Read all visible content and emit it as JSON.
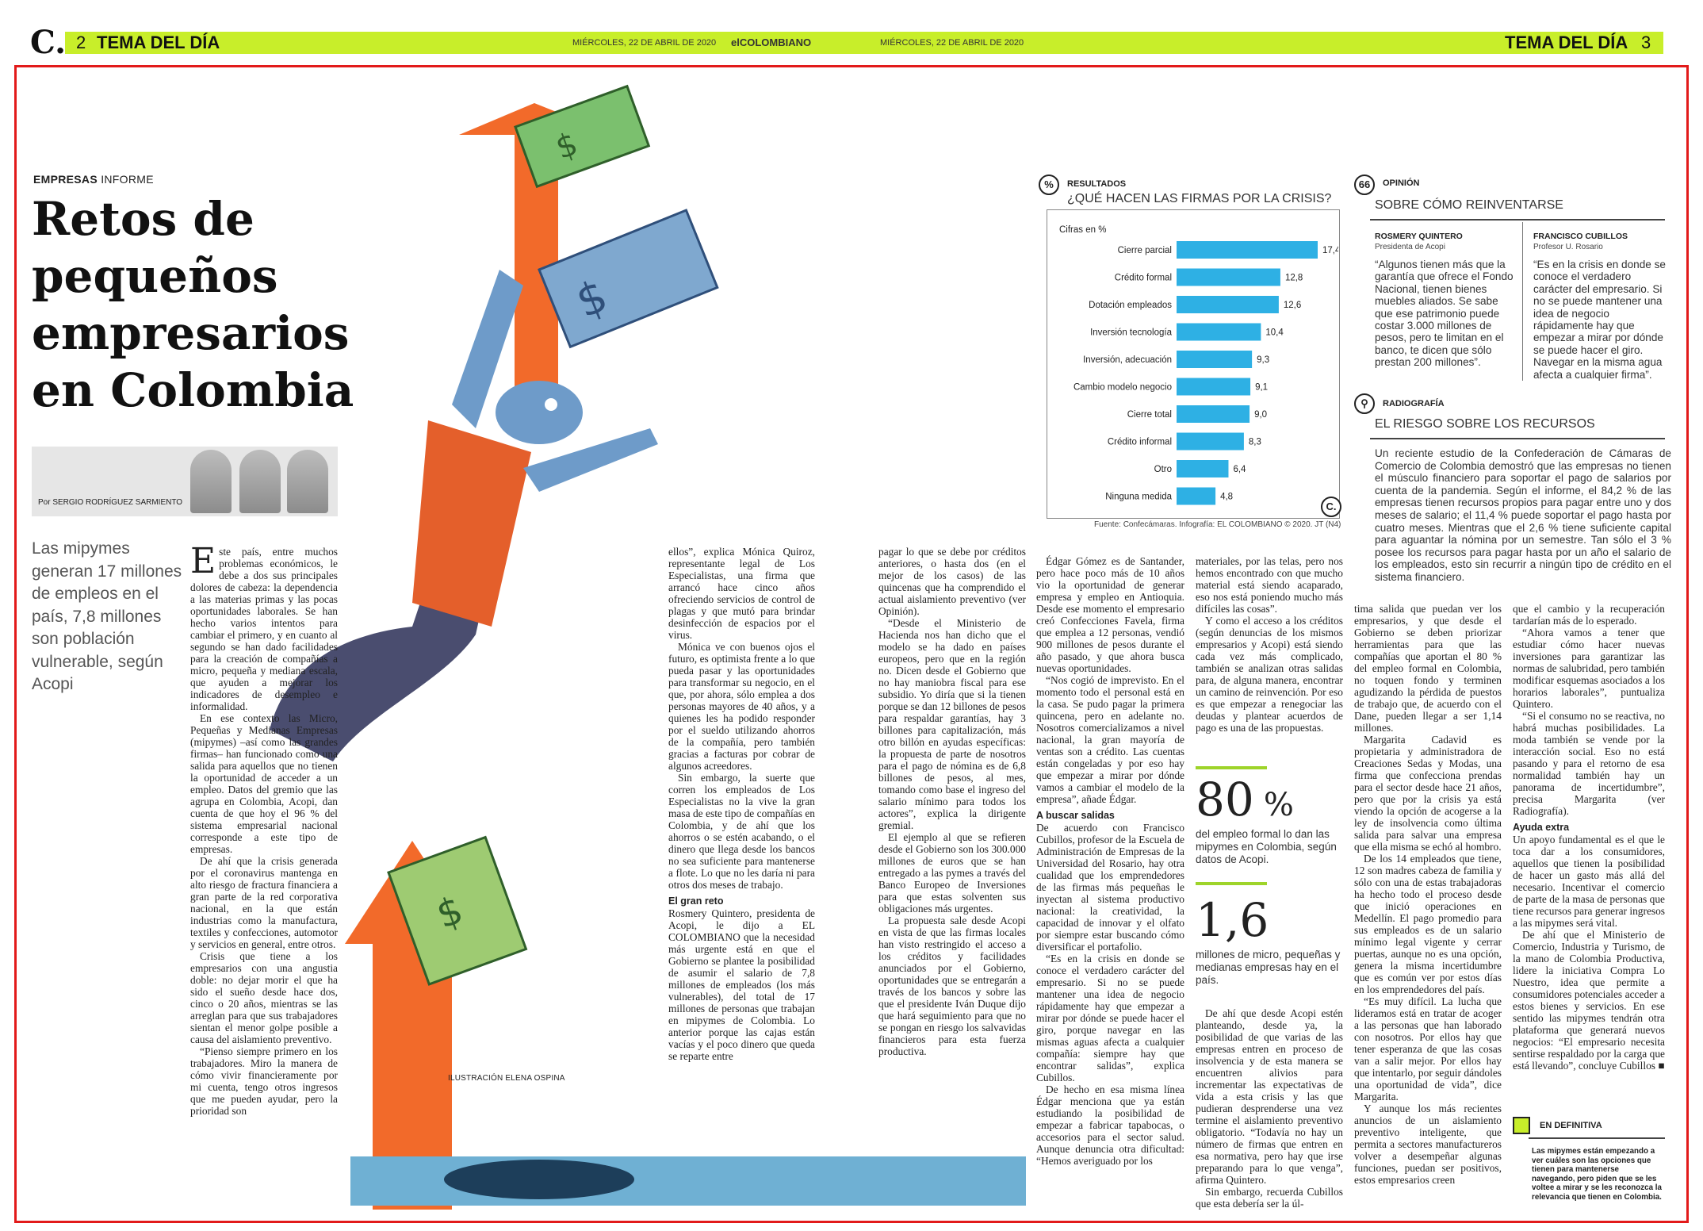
{
  "header": {
    "left_page_num": "2",
    "left_section": "TEMA DEL DÍA",
    "date_left": "MIÉRCOLES, 22 DE ABRIL DE 2020",
    "brand": "elCOLOMBIANO",
    "date_right": "MIÉRCOLES, 22 DE ABRIL DE 2020",
    "right_section": "TEMA DEL DÍA",
    "right_page_num": "3",
    "logo": "C."
  },
  "article": {
    "kicker_bold": "EMPRESAS",
    "kicker_rest": "INFORME",
    "headline": "Retos de pequeños empresarios en Colombia",
    "author": "Por SERGIO RODRÍGUEZ SARMIENTO",
    "summary": "Las mipymes generan 17 millones de empleos en el país, 7,8 millones son población vulnerable, según Acopi",
    "illustration_credit": "ILUSTRACIÓN ELENA OSPINA",
    "col1": [
      "ste país, entre muchos problemas económicos, le debe a dos sus principales dolores de cabeza: la dependencia a las materias primas y las pocas oportunidades laborales. Se han hecho varios intentos para cambiar el primero, y en cuanto al segundo se han dado facilidades para la creación de compañías a micro, pequeña y mediana escala, que ayuden a mejorar los indicadores de desempleo e informalidad.",
      "En ese contexto las Micro, Pequeñas y Medianas Empresas (mipymes) –así como las grandes firmas– han funcionado como una salida para aquellos que no tienen la oportunidad de acceder a un empleo. Datos del gremio que las agrupa en Colombia, Acopi, dan cuenta de que hoy el 96 % del sistema empresarial nacional corresponde a este tipo de empresas.",
      "De ahí que la crisis generada por el coronavirus mantenga en alto riesgo de fractura financiera a gran parte de la red corporativa nacional, en la que están industrias como la manufactura, textiles y confecciones, automotor y servicios en general, entre otros.",
      "Crisis que tiene a los empresarios con una angustia doble: no dejar morir el que ha sido el sueño desde hace dos, cinco o 20 años, mientras se las arreglan para que sus trabajadores sientan el menor golpe posible a causa del aislamiento preventivo.",
      "“Pienso siempre primero en los trabajadores. Miro la manera de cómo vivir financieramente por mi cuenta, tengo otros ingresos que me pueden ayudar, pero la prioridad son"
    ],
    "dropcap": "E",
    "col2": [
      "ellos”, explica Mónica Quiroz, representante legal de Los Especialistas, una firma que arrancó hace cinco años ofreciendo servicios de control de plagas y que mutó para brindar desinfección de espacios por el virus.",
      "Mónica ve con buenos ojos el futuro, es optimista frente a lo que pueda pasar y las oportunidades para transformar su negocio, en el que, por ahora, sólo emplea a dos personas mayores de 40 años, y a quienes les ha podido responder por el sueldo utilizando ahorros de la compañía, pero también gracias a facturas por cobrar de algunos acreedores.",
      "Sin embargo, la suerte que corren los empleados de Los Especialistas no la vive la gran masa de este tipo de compañías en Colombia, y de ahí que los ahorros o se estén acabando, o el dinero que llega desde los bancos no sea suficiente para mantenerse a flote. Lo que no les daría ni para otros dos meses de trabajo."
    ],
    "col2_sub": "El gran reto",
    "col2b": [
      "Rosmery Quintero, presidenta de Acopi, le dijo a EL COLOMBIANO que la necesidad más urgente está en que el Gobierno se plantee la posibilidad de asumir el salario de 7,8 millones de empleados (los más vulnerables), del total de 17 millones de personas que trabajan en mipymes de Colombia. Lo anterior porque las cajas están vacías y el poco dinero que queda se reparte entre"
    ],
    "col3": [
      "pagar lo que se debe por créditos anteriores, o hasta dos (en el mejor de los casos) de las quincenas que ha comprendido el actual aislamiento preventivo (ver Opinión).",
      "“Desde el Ministerio de Hacienda nos han dicho que el modelo se ha dado en países europeos, pero que en la región no. Dicen desde el Gobierno que no hay maniobra fiscal para ese subsidio. Yo diría que si la tienen porque se dan 12 billones de pesos para respaldar garantías, hay 3 billones para capitalización, más otro billón en ayudas específicas: la propuesta de parte de nosotros para el pago de nómina es de 6,8 billones de pesos, al mes, tomando como base el ingreso del salario mínimo para todos los actores”, explica la dirigente gremial.",
      "El ejemplo al que se refieren desde el Gobierno son los 300.000 millones de euros que se han entregado a las pymes a través del Banco Europeo de Inversiones para que estas solventen sus obligaciones más urgentes.",
      "La propuesta sale desde Acopi en vista de que las firmas locales han visto restringido el acceso a los créditos y facilidades anunciados por el Gobierno, oportunidades que se entregarán a través de los bancos y sobre las que el presidente Iván Duque dijo que hará seguimiento para que no se pongan en riesgo los salvavidas financieros para esta fuerza productiva."
    ],
    "col4": [
      "Édgar Gómez es de Santander, pero hace poco más de 10 años vio la oportunidad de generar empresa y empleo en Antioquia. Desde ese momento el empresario creó Confecciones Favela, firma que emplea a 12 personas, vendió 900 millones de pesos durante el año pasado, y que ahora busca nuevas oportunidades.",
      "“Nos cogió de imprevisto. En el momento todo el personal está en la casa. Se pudo pagar la primera quincena, pero en adelante no. Nosotros comercializamos a nivel nacional, la gran mayoría de ventas son a crédito. Las cuentas están congeladas y por eso hay que empezar a mirar por dónde vamos a cambiar el modelo de la empresa”, añade Édgar."
    ],
    "col4_sub": "A buscar salidas",
    "col4b": [
      "De acuerdo con Francisco Cubillos, profesor de la Escuela de Administración de Empresas de la Universidad del Rosario, hay otra cualidad que los emprendedores de las firmas más pequeñas le inyectan al sistema productivo nacional: la creatividad, la capacidad de innovar y el olfato por siempre estar buscando cómo diversificar el portafolio.",
      "“Es en la crisis en donde se conoce el verdadero carácter del empresario. Si no se puede mantener una idea de negocio rápidamente hay que empezar a mirar por dónde se puede hacer el giro, porque navegar en las mismas aguas afecta a cualquier compañía: siempre hay que encontrar salidas”, explica Cubillos.",
      "De hecho en esa misma línea Édgar menciona que ya están estudiando la posibilidad de empezar a fabricar tapabocas, o accesorios para el sector salud. Aunque denuncia otra dificultad: “Hemos averiguado por los"
    ],
    "col5": [
      "materiales, por las telas, pero nos hemos encontrado con que mucho material está siendo acaparado, eso nos está poniendo mucho más difíciles las cosas”.",
      "Y como el acceso a los créditos (según denuncias de los mismos empresarios y Acopi) está siendo cada vez más complicado, también se analizan otras salidas para, de alguna manera, encontrar un camino de reinvención. Por eso es que empezar a renegociar las deudas y plantear acuerdos de pago es una de las propuestas."
    ],
    "col5b": [
      "De ahí que desde Acopi estén planteando, desde ya, la posibilidad de que varias de las empresas entren en proceso de insolvencia y de esta manera se encuentren alivios para incrementar las expectativas de vida a esta crisis y las que pudieran desprenderse una vez termine el aislamiento preventivo obligatorio. “Todavía no hay un número de firmas que entren en esa normativa, pero hay que irse preparando para lo que venga”, afirma Quintero.",
      "Sin embargo, recuerda Cubillos que esta debería ser la úl-"
    ],
    "col6": [
      "tima salida que puedan ver los empresarios, y que desde el Gobierno se deben priorizar herramientas para que las compañías que aportan el 80 % del empleo formal en Colombia, no toquen fondo y terminen agudizando la pérdida de puestos de trabajo que, de acuerdo con el Dane, pueden llegar a ser 1,14 millones.",
      "Margarita Cadavid es propietaria y administradora de Creaciones Sedas y Modas, una firma que confecciona prendas para el sector desde hace 21 años, pero que por la crisis ya está viendo la opción de acogerse a la ley de insolvencia como última salida para salvar una empresa que ella misma se echó al hombro.",
      "De los 14 empleados que tiene, 12 son madres cabeza de familia y sólo con una de estas trabajadoras ha hecho todo el proceso desde que inició operaciones en Medellín. El pago promedio para sus empleados es de un salario mínimo legal vigente y cerrar puertas, aunque no es una opción, genera la misma incertidumbre que es común ver por estos días en los emprendedores del país.",
      "“Es muy difícil. La lucha que lideramos está en tratar de acoger a las personas que han laborado con nosotros. Por ellos hay que tener esperanza de que las cosas van a salir mejor. Por ellos hay que intentarlo, por seguir dándoles una oportunidad de vida”, dice Margarita.",
      "Y aunque los más recientes anuncios de un aislamiento preventivo inteligente, que permita a sectores manufactureros volver a desempeñar algunas funciones, puedan ser positivos, estos empresarios creen"
    ],
    "col7": [
      "que el cambio y la recuperación tardarían más de lo esperado.",
      "“Ahora vamos a tener que estudiar cómo hacer nuevas inversiones para garantizar las normas de salubridad, pero también modificar esquemas asociados a los horarios laborales”, puntualiza Quintero.",
      "“Si el consumo no se reactiva, no habrá muchas posibilidades. La moda también se vende por la interacción social. Eso no está pasando y para el retorno de esa normalidad también hay un panorama de incertidumbre”, precisa Margarita (ver Radiografía)."
    ],
    "col7_sub": "Ayuda extra",
    "col7b": [
      "Un apoyo fundamental es el que le toca dar a los consumidores, aquellos que tienen la posibilidad de hacer un gasto más allá del necesario. Incentivar el comercio de parte de la masa de personas que tiene recursos para generar ingresos a las mipymes será vital.",
      "De ahí que el Ministerio de Comercio, Industria y Turismo, de la mano de Colombia Productiva, lidere la iniciativa Compra Lo Nuestro, idea que permite a consumidores potenciales acceder a estos bienes y servicios. En ese sentido las mipymes tendrán otra plataforma que generará nuevos negocios: “El empresario necesita sentirse respaldado por la carga que está llevando”, concluye Cubillos ■"
    ]
  },
  "results": {
    "icon": "%",
    "label": "RESULTADOS",
    "question": "¿QUÉ HACEN LAS FIRMAS POR LA CRISIS?",
    "source": "Fuente: Confecámaras. Infografía: EL COLOMBIANO © 2020. JT (N4)"
  },
  "chart_data": {
    "type": "bar",
    "orientation": "horizontal",
    "subtitle": "Cifras en %",
    "categories": [
      "Cierre parcial",
      "Crédito formal",
      "Dotación empleados",
      "Inversión tecnología",
      "Inversión, adecuación",
      "Cambio modelo negocio",
      "Cierre total",
      "Crédito informal",
      "Otro",
      "Ninguna medida"
    ],
    "values": [
      17.4,
      12.8,
      12.6,
      10.4,
      9.3,
      9.1,
      9.0,
      8.3,
      6.4,
      4.8
    ],
    "value_labels": [
      "17,4",
      "12,8",
      "12,6",
      "10,4",
      "9,3",
      "9,1",
      "9,0",
      "8,3",
      "6,4",
      "4,8"
    ],
    "color": "#2eb0e4",
    "xlim": [
      0,
      17.4
    ]
  },
  "opinion": {
    "icon": "66",
    "label": "OPINIÓN",
    "title": "SOBRE CÓMO REINVENTARSE",
    "a_name": "ROSMERY QUINTERO",
    "a_role": "Presidenta de Acopi",
    "a_quote": "“Algunos tienen más que la garantía que ofrece el Fondo Nacional, tienen bienes muebles aliados. Se sabe que ese patrimonio puede costar 3.000 millones de pesos, pero te limitan en el banco, te dicen que sólo prestan 200 millones”.",
    "b_name": "FRANCISCO CUBILLOS",
    "b_role": "Profesor U. Rosario",
    "b_quote": "“Es en la crisis en donde se conoce el verdadero carácter del empresario. Si no se puede mantener una idea de negocio rápidamente hay que empezar a mirar por dónde se puede hacer el giro. Navegar en la misma agua afecta a cualquier firma”."
  },
  "radiografia": {
    "icon": "magnifier-icon",
    "label": "RADIOGRAFÍA",
    "title": "EL RIESGO SOBRE LOS RECURSOS",
    "text": "Un reciente estudio de la Confederación de Cámaras de Comercio de Colombia demostró que las empresas no tienen el músculo financiero para soportar el pago de salarios por cuenta de la pandemia. Según el informe, el 84,2 % de las empresas tienen recursos propios para pagar entre uno y dos meses de salario; el 11,4 % puede soportar el pago hasta por cuatro meses. Mientras que el 2,6 % tiene suficiente capital para aguantar la nómina por un semestre. Tan sólo el 3 % posee los recursos para pagar hasta por un año el salario de los empleados, esto sin recurrir a ningún tipo de crédito en el sistema financiero."
  },
  "stats": {
    "s1_value": "80",
    "s1_unit": "%",
    "s1_caption": "del empleo formal lo dan las mipymes en Colombia, según datos de Acopi.",
    "s2_value": "1,6",
    "s2_caption": "millones de micro, pequeñas y medianas empresas hay en el país."
  },
  "definitiva": {
    "label": "EN DEFINITIVA",
    "text": "Las mipymes están empezando a ver cuáles son las opciones que tienen para mantenerse navegando, pero piden que se les voltee a mirar y se les reconozca la relevancia que tienen en Colombia."
  },
  "colors": {
    "accent_green": "#c8ee2a",
    "frame_red": "#e21a1a",
    "arrow_orange": "#f26a2a",
    "bar_blue": "#2eb0e4"
  }
}
